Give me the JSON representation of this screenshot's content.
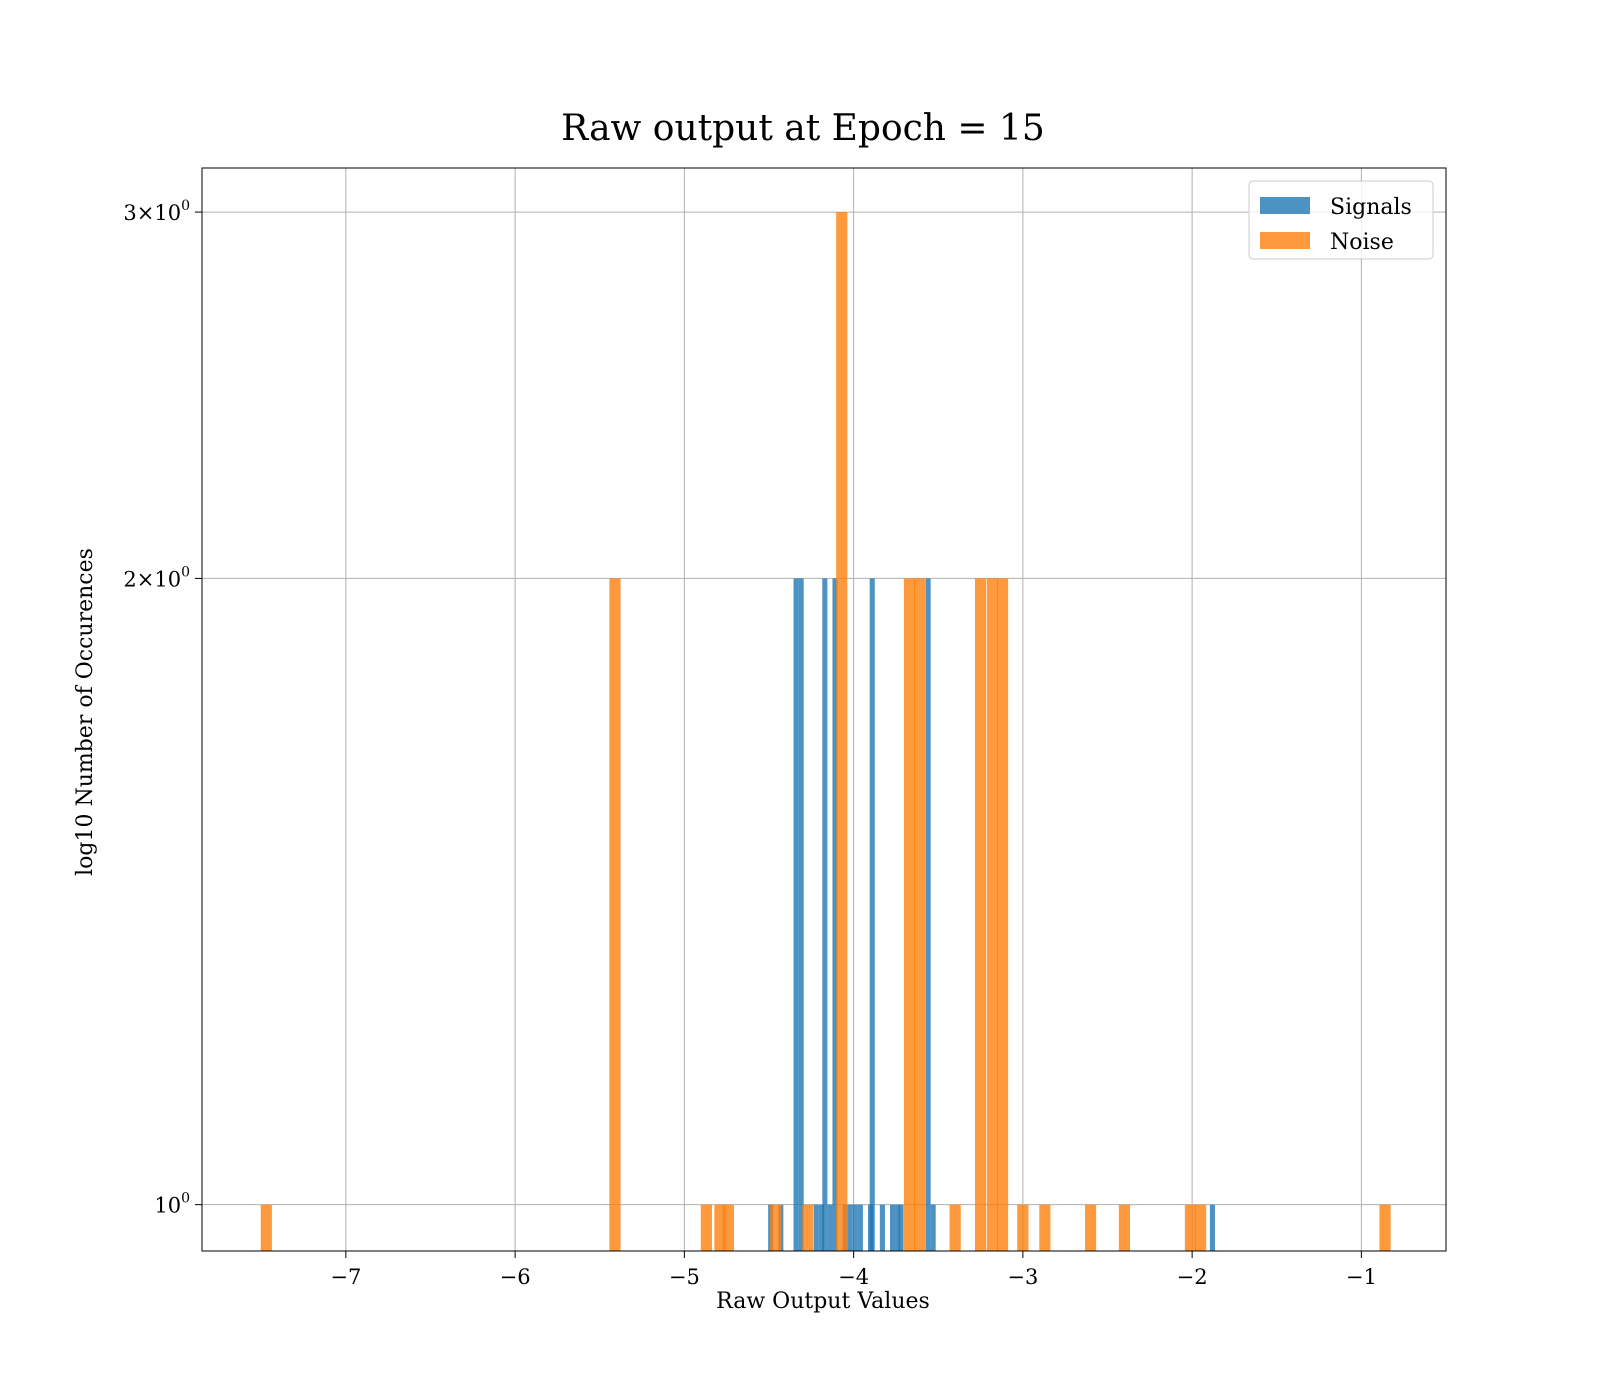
{
  "chart_data": {
    "type": "bar",
    "title": "Raw output at Epoch = 15",
    "xlabel": "Raw Output Values",
    "ylabel": "log10 Number of Occurences",
    "xlim": [
      -7.85,
      -0.5
    ],
    "ylim": [
      0.95,
      3.15
    ],
    "yscale": "log",
    "grid": true,
    "legend_position": "top-right",
    "bin_width": 0.066,
    "x_ticks": [
      -7,
      -6,
      -5,
      -4,
      -3,
      -2,
      -1
    ],
    "x_tick_labels": [
      "−7",
      "−6",
      "−5",
      "−4",
      "−3",
      "−2",
      "−1"
    ],
    "y_ticks": [
      1,
      2,
      3
    ],
    "y_tick_labels": [
      {
        "base": "10",
        "exp": "0"
      },
      {
        "base": "2×10",
        "exp": "0"
      },
      {
        "base": "3×10",
        "exp": "0"
      }
    ],
    "series": [
      {
        "name": "Signals",
        "color": "#1f77b4",
        "bin_width": 0.03,
        "bars": [
          [
            -4.49,
            1
          ],
          [
            -4.43,
            1
          ],
          [
            -4.34,
            2
          ],
          [
            -4.31,
            2
          ],
          [
            -4.22,
            1
          ],
          [
            -4.19,
            1
          ],
          [
            -4.17,
            2
          ],
          [
            -4.14,
            1
          ],
          [
            -4.11,
            2
          ],
          [
            -4.05,
            1
          ],
          [
            -4.02,
            1
          ],
          [
            -3.99,
            1
          ],
          [
            -3.96,
            1
          ],
          [
            -3.9,
            1
          ],
          [
            -3.89,
            2
          ],
          [
            -3.83,
            1
          ],
          [
            -3.77,
            1
          ],
          [
            -3.74,
            1
          ],
          [
            -3.72,
            1
          ],
          [
            -3.56,
            2
          ],
          [
            -3.53,
            1
          ],
          [
            -1.88,
            1
          ]
        ]
      },
      {
        "name": "Noise",
        "color": "#ff7f0e",
        "bin_width": 0.066,
        "bars": [
          [
            -7.47,
            1
          ],
          [
            -5.41,
            2
          ],
          [
            -4.87,
            1
          ],
          [
            -4.79,
            1
          ],
          [
            -4.74,
            1
          ],
          [
            -4.46,
            1
          ],
          [
            -4.27,
            1
          ],
          [
            -4.07,
            3
          ],
          [
            -3.67,
            2
          ],
          [
            -3.61,
            2
          ],
          [
            -3.4,
            1
          ],
          [
            -3.25,
            2
          ],
          [
            -3.18,
            2
          ],
          [
            -3.12,
            2
          ],
          [
            -3.0,
            1
          ],
          [
            -2.87,
            1
          ],
          [
            -2.6,
            1
          ],
          [
            -2.4,
            1
          ],
          [
            -2.01,
            1
          ],
          [
            -1.95,
            1
          ],
          [
            -0.86,
            1
          ]
        ]
      }
    ]
  }
}
